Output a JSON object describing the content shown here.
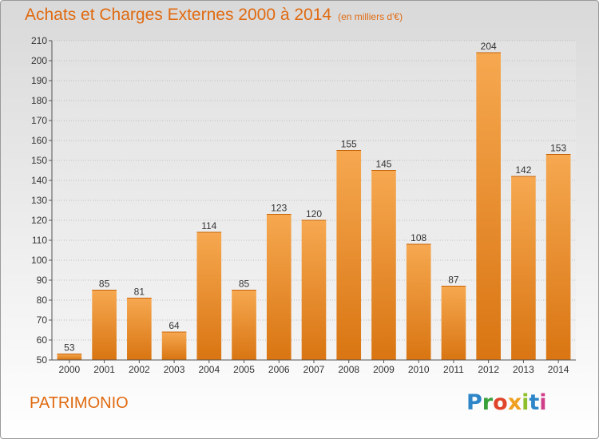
{
  "header": {
    "title": "Achats et Charges Externes 2000 à 2014",
    "unit": "(en milliers d'€)"
  },
  "footer": {
    "commune": "PATRIMONIO",
    "brand": "Proxiti",
    "brand_colors": [
      "#2e86c8",
      "#3aa03a",
      "#e0442a",
      "#f0a020",
      "#8fbf2a",
      "#2e86c8",
      "#d0408a"
    ]
  },
  "colors": {
    "bar_light": "#f6a850",
    "bar_dark": "#d97512",
    "axis": "#555555",
    "grid": "#bfbfbf",
    "title": "#e06a10"
  },
  "chart_data": {
    "type": "bar",
    "title": "Achats et Charges Externes 2000 à 2014",
    "subtitle": "(en milliers d'€)",
    "categories": [
      "2000",
      "2001",
      "2002",
      "2003",
      "2004",
      "2005",
      "2006",
      "2007",
      "2008",
      "2009",
      "2010",
      "2011",
      "2012",
      "2013",
      "2014"
    ],
    "values": [
      53,
      85,
      81,
      64,
      114,
      85,
      123,
      120,
      155,
      145,
      108,
      87,
      204,
      142,
      153
    ],
    "ylim": [
      50,
      210
    ],
    "yticks": [
      50,
      60,
      70,
      80,
      90,
      100,
      110,
      120,
      130,
      140,
      150,
      160,
      170,
      180,
      190,
      200,
      210
    ],
    "xlabel": "",
    "ylabel": "",
    "grid": true,
    "data_labels": true
  }
}
